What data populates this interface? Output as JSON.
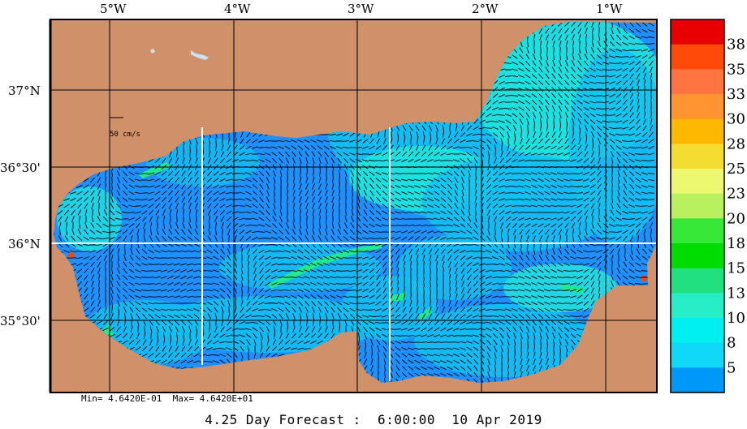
{
  "map": {
    "lon_labels": [
      "5°W",
      "4°W",
      "3°W",
      "2°W",
      "1°W"
    ],
    "lat_labels": [
      "37°N",
      "36°30'",
      "36°N",
      "35°30'"
    ],
    "scale_label": "50 cm/s",
    "colors": {
      "land": "#D0906A",
      "water_dark": "#1E90FF",
      "water_mid": "#12C2F2",
      "water_cyan": "#20E8DC",
      "water_green": "#22E890",
      "hot": "#E84A1C",
      "grid": "#000000",
      "arrows": "#000000"
    }
  },
  "colorbar": {
    "labels": [
      "38",
      "35",
      "33",
      "30",
      "28",
      "25",
      "23",
      "20",
      "18",
      "15",
      "13",
      "10",
      "8",
      "5"
    ],
    "colors": [
      "#E80000",
      "#FF4A0A",
      "#FF7440",
      "#FF9530",
      "#FFB800",
      "#F5DC30",
      "#ECF870",
      "#B8F060",
      "#38E838",
      "#00DC00",
      "#20E080",
      "#28EEC8",
      "#00F0F0",
      "#10D8F8",
      "#0098F8"
    ]
  },
  "stats": {
    "min_max": "Min= 4.6420E-01  Max= 4.6420E+01"
  },
  "caption": "4.25 Day Forecast :  6:00:00  10 Apr 2019"
}
